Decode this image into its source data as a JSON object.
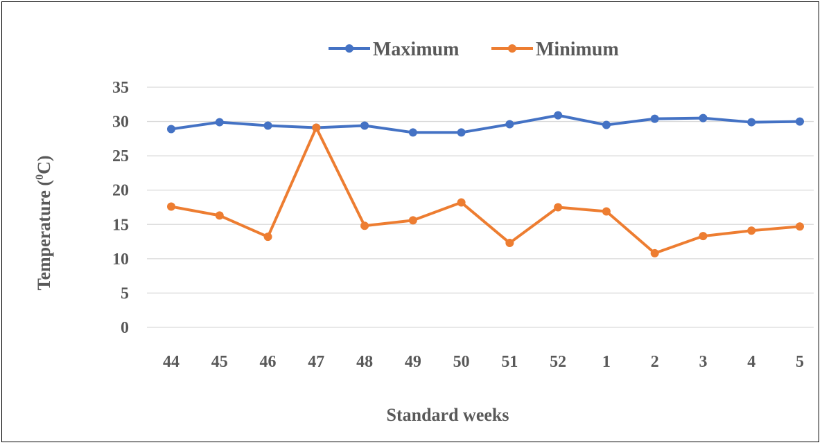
{
  "chart_data": {
    "type": "line",
    "title": "",
    "xlabel": "Standard weeks",
    "ylabel_main": "Temperature (",
    "ylabel_sup": "0",
    "ylabel_tail": "C)",
    "ylim": [
      0,
      35
    ],
    "yticks": [
      "0",
      "5",
      "10",
      "15",
      "20",
      "25",
      "30",
      "35"
    ],
    "categories": [
      "44",
      "45",
      "46",
      "47",
      "48",
      "49",
      "50",
      "51",
      "52",
      "1",
      "2",
      "3",
      "4",
      "5"
    ],
    "legend_position": "top-center",
    "grid": true,
    "series": [
      {
        "name": "Maximum",
        "color": "#4472C4",
        "values": [
          28.9,
          29.9,
          29.4,
          29.1,
          29.4,
          28.4,
          28.4,
          29.6,
          30.9,
          29.5,
          30.4,
          30.5,
          29.9,
          30.0
        ]
      },
      {
        "name": "Minimum",
        "color": "#ED7D31",
        "values": [
          17.6,
          16.3,
          13.2,
          29.1,
          14.8,
          15.6,
          18.2,
          12.3,
          17.5,
          16.9,
          10.8,
          13.3,
          14.1,
          14.7
        ]
      }
    ]
  }
}
